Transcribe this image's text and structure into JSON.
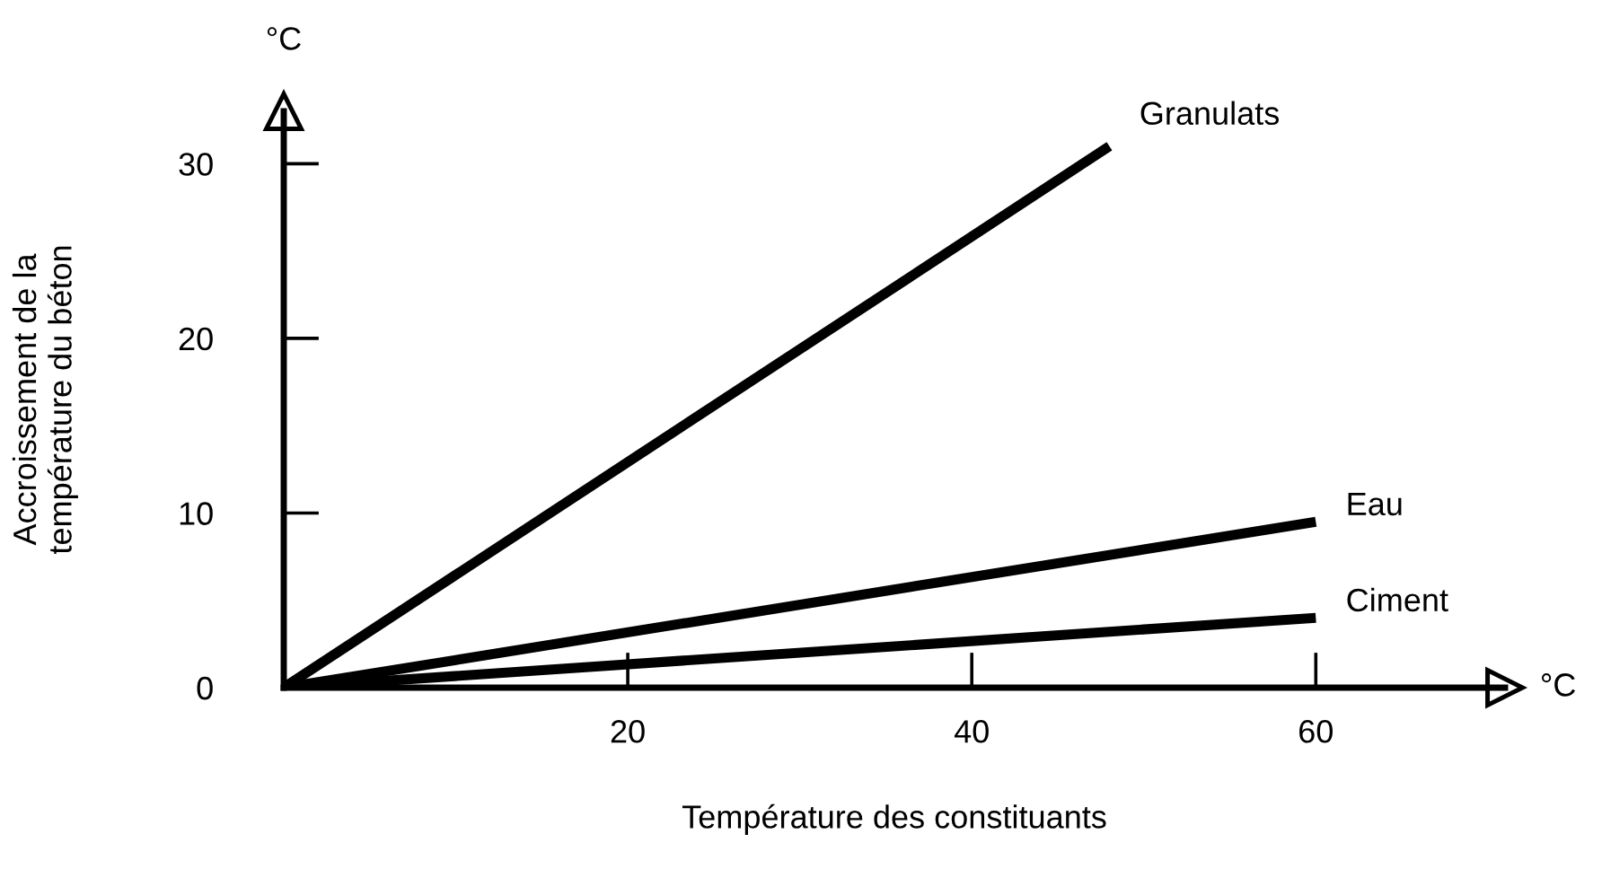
{
  "chart_data": {
    "type": "line",
    "xlabel": "Température des constituants",
    "ylabel": "Accroissement de la\ntempérature du béton",
    "xlim": [
      0,
      71
    ],
    "ylim": [
      0,
      33
    ],
    "xticks": [
      20,
      40,
      60
    ],
    "yticks": [
      0,
      10,
      20,
      30
    ],
    "series": [
      {
        "name": "Granulats",
        "color": "#000000",
        "x": [
          0,
          48
        ],
        "values": [
          0,
          31
        ]
      },
      {
        "name": "Eau",
        "color": "#000000",
        "x": [
          0,
          60
        ],
        "values": [
          0,
          9.5
        ]
      },
      {
        "name": "Ciment",
        "color": "#000000",
        "x": [
          0,
          60
        ],
        "values": [
          0,
          4
        ]
      }
    ],
    "annotations": [
      "°C",
      "°C"
    ],
    "grid": false,
    "legend": false,
    "marker": "none",
    "line_style": "solid"
  }
}
